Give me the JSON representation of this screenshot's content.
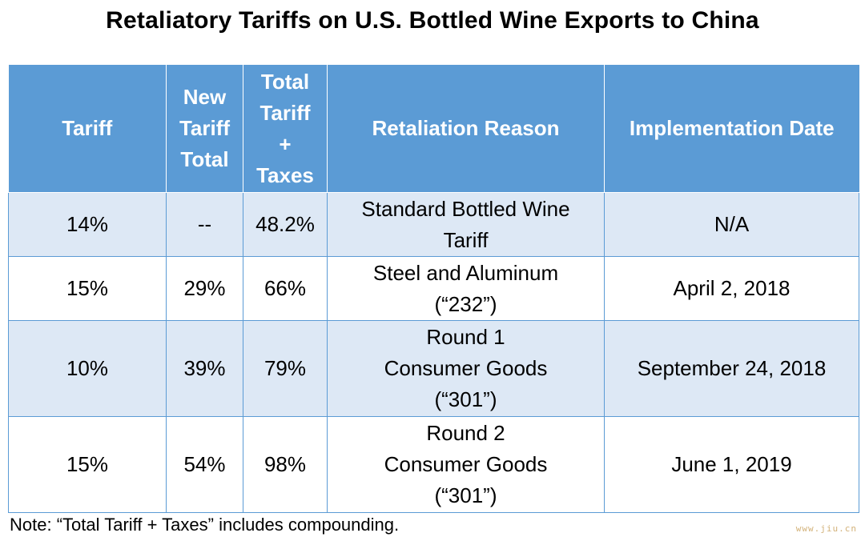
{
  "title": "Retaliatory Tariffs on U.S. Bottled Wine Exports to China",
  "header": {
    "tariff": [
      "Tariff"
    ],
    "new_tariff_total": [
      "New",
      "Tariff",
      "Total"
    ],
    "total_tariff_taxes": [
      "Total",
      "Tariff",
      "+",
      "Taxes"
    ],
    "retaliation_reason": [
      "Retaliation Reason"
    ],
    "implementation_date": [
      "Implementation Date"
    ]
  },
  "rows": [
    {
      "tariff": "14%",
      "new_total": "--",
      "total_with_taxes": "48.2%",
      "reason": [
        "Standard Bottled Wine",
        "Tariff"
      ],
      "date": "N/A"
    },
    {
      "tariff": "15%",
      "new_total": "29%",
      "total_with_taxes": "66%",
      "reason": [
        "Steel and Aluminum",
        "(“232”)"
      ],
      "date": "April 2, 2018"
    },
    {
      "tariff": "10%",
      "new_total": "39%",
      "total_with_taxes": "79%",
      "reason": [
        "Round 1",
        "Consumer Goods",
        "(“301”)"
      ],
      "date": "September 24, 2018"
    },
    {
      "tariff": "15%",
      "new_total": "54%",
      "total_with_taxes": "98%",
      "reason": [
        "Round 2",
        "Consumer Goods",
        "(“301”)"
      ],
      "date": "June 1, 2019"
    }
  ],
  "note": "Note: “Total Tariff + Taxes” includes compounding.",
  "watermark": "www.jiu.cn",
  "colors": {
    "header_bg": "#5b9bd5",
    "header_text": "#ffffff",
    "band_row_bg": "#dde8f5",
    "plain_row_bg": "#ffffff",
    "grid_line": "#5b9bd5"
  }
}
